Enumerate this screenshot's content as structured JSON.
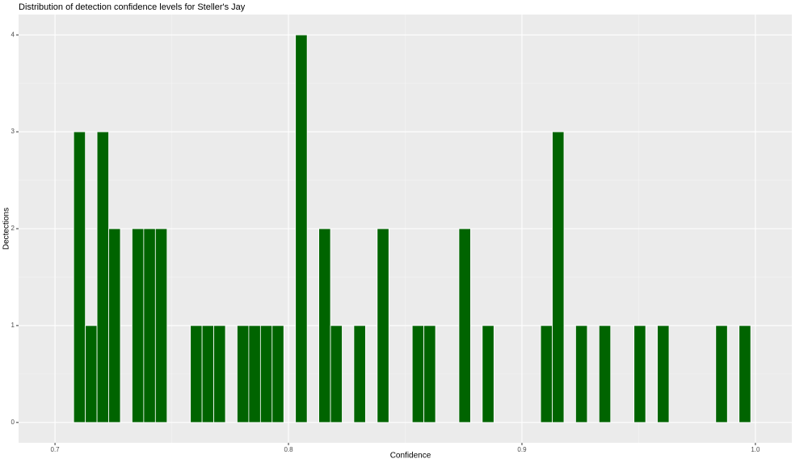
{
  "chart_data": {
    "type": "histogram",
    "title": "Distribution of detection confidence levels for Steller's Jay",
    "x_label": "Confidence",
    "y_label": "Dectections",
    "color": "#006400",
    "bins": [
      0.708,
      0.713,
      0.718,
      0.723,
      0.728,
      0.733,
      0.738,
      0.743,
      0.748,
      0.753,
      0.758,
      0.763,
      0.768,
      0.773,
      0.778,
      0.783,
      0.788,
      0.793,
      0.798,
      0.803,
      0.808,
      0.813,
      0.818,
      0.823,
      0.828,
      0.833,
      0.838,
      0.843,
      0.848,
      0.853,
      0.858,
      0.863,
      0.868,
      0.873,
      0.878,
      0.883,
      0.888,
      0.893,
      0.898,
      0.903,
      0.908,
      0.913,
      0.918,
      0.923,
      0.928,
      0.933,
      0.938,
      0.943,
      0.948,
      0.953,
      0.958,
      0.963,
      0.968,
      0.973,
      0.978,
      0.983,
      0.988,
      0.993,
      0.998
    ],
    "counts": [
      3,
      1,
      3,
      2,
      0,
      2,
      2,
      2,
      0,
      0,
      1,
      1,
      1,
      0,
      1,
      1,
      1,
      1,
      0,
      4,
      0,
      2,
      1,
      0,
      1,
      0,
      2,
      0,
      0,
      1,
      1,
      0,
      0,
      2,
      0,
      1,
      0,
      0,
      0,
      0,
      1,
      3,
      0,
      1,
      0,
      1,
      0,
      0,
      1,
      0,
      1,
      0,
      0,
      0,
      0,
      1,
      0,
      1
    ],
    "xlim": [
      0.6844,
      1.0156
    ],
    "ylim": [
      -0.21,
      4.21
    ],
    "xticks": [
      0.7,
      0.8,
      0.9,
      {
        "value": 1.0,
        "label": "1.0"
      }
    ],
    "yticks": [
      0,
      1,
      2,
      3,
      4
    ],
    "grid": true
  }
}
